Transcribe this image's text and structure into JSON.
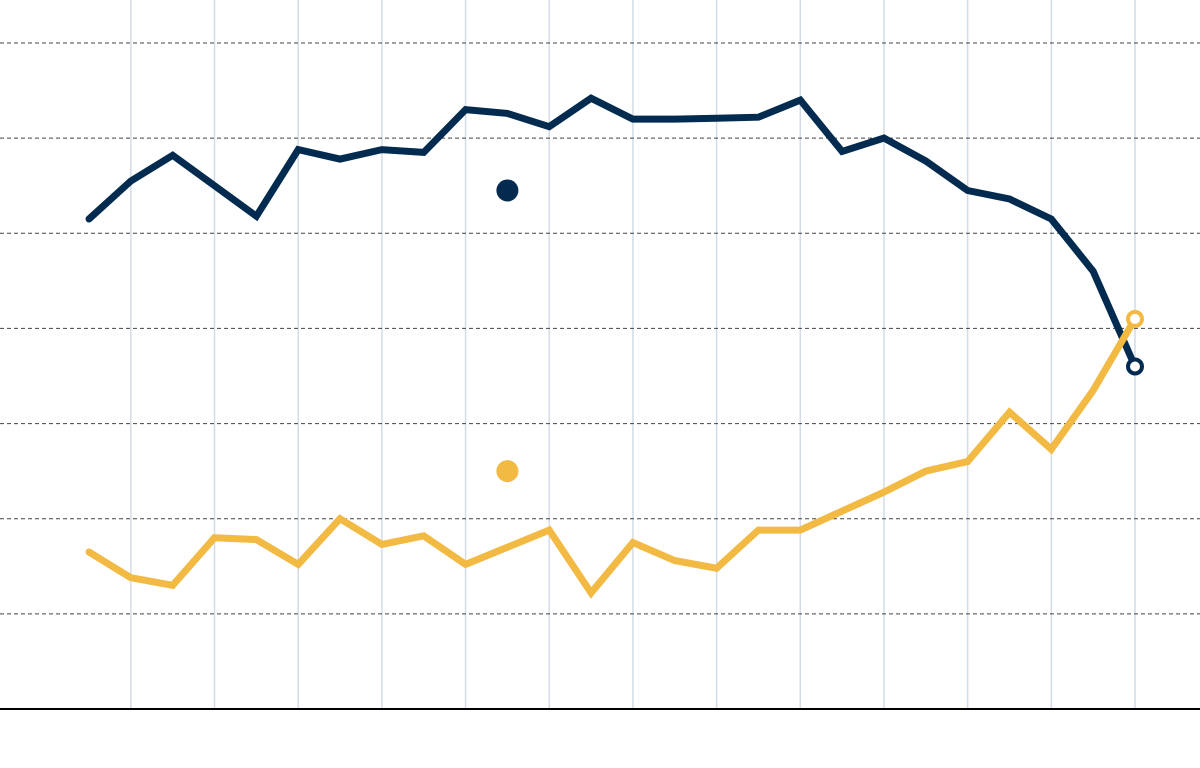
{
  "colors": {
    "series_dark": "#022b4f",
    "series_gold": "#f2b943",
    "gridline_h": "#444444",
    "gridline_v": "#d3dce6",
    "axis": "#000000",
    "background": "#ffffff"
  },
  "chart_data": {
    "type": "line",
    "grid": {
      "horizontal": "dashed",
      "vertical": "solid"
    },
    "xlim": [
      0,
      25
    ],
    "ylim": [
      0,
      7
    ],
    "x_gridlines": [
      1,
      3,
      5,
      7,
      9,
      11,
      13,
      15,
      17,
      19,
      21,
      23,
      25
    ],
    "y_gridlines": [
      1,
      2,
      3,
      4,
      5,
      6,
      7
    ],
    "series": [
      {
        "color_key": "series_dark",
        "x": [
          0,
          1,
          2,
          3,
          4,
          5,
          6,
          7,
          8,
          9,
          10,
          11,
          12,
          13,
          14,
          15,
          16,
          17,
          18,
          19,
          20,
          21,
          22,
          23,
          24,
          25
        ],
        "y": [
          5.15,
          5.55,
          5.82,
          5.5,
          5.18,
          5.88,
          5.78,
          5.88,
          5.85,
          6.3,
          6.26,
          6.12,
          6.42,
          6.2,
          6.2,
          6.21,
          6.22,
          6.4,
          5.86,
          6.0,
          5.76,
          5.45,
          5.36,
          5.15,
          4.6,
          3.6
        ],
        "end_marker": "hollow",
        "legend_marker": {
          "x": 10,
          "y": 5.45
        }
      },
      {
        "color_key": "series_gold",
        "x": [
          0,
          1,
          2,
          3,
          4,
          5,
          6,
          7,
          8,
          9,
          10,
          11,
          12,
          13,
          14,
          15,
          16,
          17,
          18,
          19,
          20,
          21,
          22,
          23,
          24,
          25
        ],
        "y": [
          1.65,
          1.38,
          1.3,
          1.8,
          1.78,
          1.52,
          2.0,
          1.73,
          1.82,
          1.52,
          1.7,
          1.88,
          1.22,
          1.75,
          1.56,
          1.48,
          1.88,
          1.88,
          2.08,
          2.28,
          2.5,
          2.6,
          3.12,
          2.73,
          3.35,
          4.1
        ],
        "end_marker": "hollow",
        "legend_marker": {
          "x": 10,
          "y": 2.5
        }
      }
    ]
  }
}
